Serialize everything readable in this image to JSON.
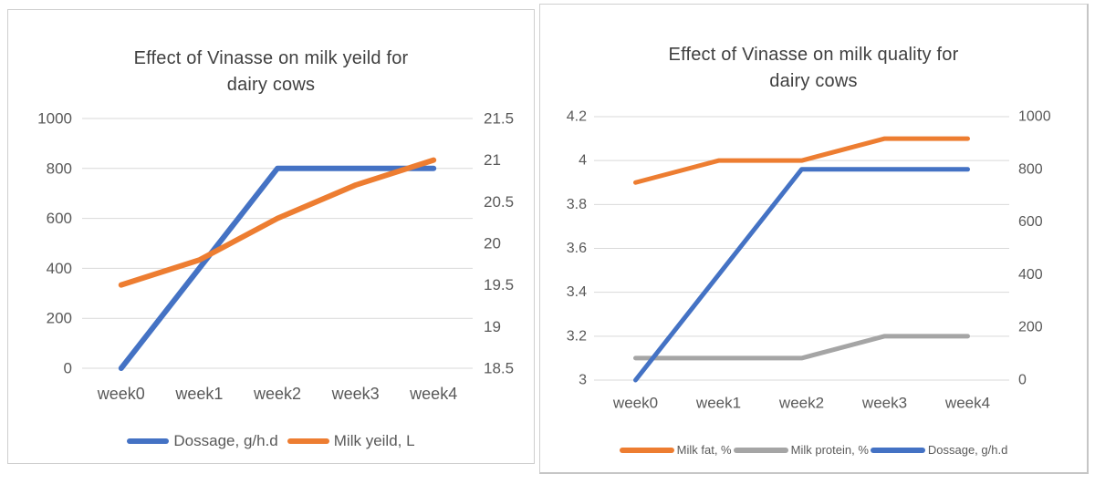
{
  "colors": {
    "blue_series": "#4472C4",
    "orange_series": "#ED7D31",
    "gray_series": "#A5A5A5",
    "gridline": "#D9D9D9",
    "tick_text": "#595959",
    "title_text": "#404040",
    "panel_border": "#CFCFCF",
    "panel_background": "#FFFFFF"
  },
  "chart_data": [
    {
      "type": "line",
      "title": "Effect of Vinasse on milk yeild for dairy cows",
      "title_lines": [
        "Effect of Vinasse on milk yeild for",
        "dairy cows"
      ],
      "categories": [
        "week0",
        "week1",
        "week2",
        "week3",
        "week4"
      ],
      "grid": "horizontal, from left axis ticks",
      "legend_position": "bottom",
      "axes": {
        "left": {
          "min": 0,
          "max": 1000,
          "ticks": [
            "0",
            "200",
            "400",
            "600",
            "800",
            "1000"
          ]
        },
        "right": {
          "min": 18.5,
          "max": 21.5,
          "ticks": [
            "18.5",
            "19",
            "19.5",
            "20",
            "20.5",
            "21",
            "21.5"
          ]
        }
      },
      "series": [
        {
          "name": "Dossage, g/h.d",
          "axis": "left",
          "color": "#4472C4",
          "values": [
            0,
            400,
            800,
            800,
            800
          ]
        },
        {
          "name": "Milk yeild, L",
          "axis": "right",
          "color": "#ED7D31",
          "values": [
            19.5,
            19.8,
            20.3,
            20.7,
            21
          ]
        }
      ]
    },
    {
      "type": "line",
      "title": "Effect of Vinasse on milk quality for dairy cows",
      "title_lines": [
        "Effect of Vinasse on milk quality for",
        "dairy cows"
      ],
      "categories": [
        "week0",
        "week1",
        "week2",
        "week3",
        "week4"
      ],
      "grid": "horizontal, from left axis ticks",
      "legend_position": "bottom",
      "axes": {
        "left": {
          "min": 3,
          "max": 4.2,
          "ticks": [
            "3",
            "3.2",
            "3.4",
            "3.6",
            "3.8",
            "4",
            "4.2"
          ]
        },
        "right": {
          "min": 0,
          "max": 1000,
          "ticks": [
            "0",
            "200",
            "400",
            "600",
            "800",
            "1000"
          ]
        }
      },
      "series": [
        {
          "name": "Milk fat, %",
          "axis": "left",
          "color": "#ED7D31",
          "values": [
            3.9,
            4,
            4,
            4.1,
            4.1
          ]
        },
        {
          "name": "Milk protein, %",
          "axis": "left",
          "color": "#A5A5A5",
          "values": [
            3.1,
            3.1,
            3.1,
            3.2,
            3.2
          ]
        },
        {
          "name": "Dossage, g/h.d",
          "axis": "right",
          "color": "#4472C4",
          "values": [
            0,
            400,
            800,
            800,
            800
          ]
        }
      ]
    }
  ]
}
